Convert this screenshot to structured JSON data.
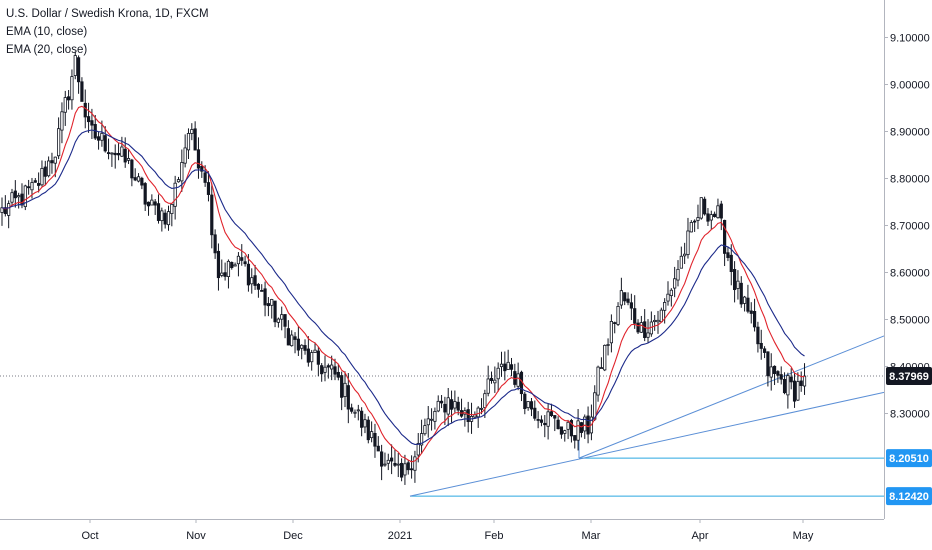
{
  "chart_data": {
    "type": "candlestick",
    "title": "U.S. Dollar / Swedish Krona, 1D, FXCM",
    "indicators": [
      {
        "name": "EMA (10, close)",
        "color": "#e0242c"
      },
      {
        "name": "EMA (20, close)",
        "color": "#1c2a8a"
      }
    ],
    "y_ticks": [
      "9.10000",
      "9.00000",
      "8.90000",
      "8.80000",
      "8.70000",
      "8.60000",
      "8.50000",
      "8.40000",
      "8.30000"
    ],
    "x_ticks": [
      "Oct",
      "Nov",
      "Dec",
      "2021",
      "Feb",
      "Mar",
      "Apr",
      "May"
    ],
    "ylim": [
      8.1,
      9.16
    ],
    "price_badges": [
      {
        "value": "8.37969",
        "color": "#131722"
      },
      {
        "value": "8.20510",
        "color": "#2196f3"
      },
      {
        "value": "8.12420",
        "color": "#2196f3"
      }
    ],
    "horizontal_levels": [
      8.2051,
      8.1242
    ],
    "current_price": 8.37969,
    "colors": {
      "up": "#ffffff",
      "down": "#131722",
      "trendline": "#5b8fd6",
      "level": "#2aa7e0"
    },
    "anchors": [
      [
        0,
        8.73
      ],
      [
        10,
        8.78
      ],
      [
        16,
        8.86
      ],
      [
        22,
        9.05
      ],
      [
        26,
        8.9
      ],
      [
        32,
        8.87
      ],
      [
        38,
        8.83
      ],
      [
        44,
        8.74
      ],
      [
        50,
        8.72
      ],
      [
        56,
        8.9
      ],
      [
        61,
        8.81
      ],
      [
        65,
        8.6
      ],
      [
        72,
        8.62
      ],
      [
        80,
        8.53
      ],
      [
        90,
        8.43
      ],
      [
        100,
        8.38
      ],
      [
        108,
        8.28
      ],
      [
        116,
        8.19
      ],
      [
        120,
        8.16
      ],
      [
        124,
        8.22
      ],
      [
        128,
        8.28
      ],
      [
        134,
        8.33
      ],
      [
        140,
        8.29
      ],
      [
        146,
        8.35
      ],
      [
        152,
        8.41
      ],
      [
        158,
        8.32
      ],
      [
        164,
        8.29
      ],
      [
        170,
        8.26
      ],
      [
        176,
        8.27
      ],
      [
        180,
        8.41
      ],
      [
        186,
        8.55
      ],
      [
        192,
        8.48
      ],
      [
        198,
        8.51
      ],
      [
        204,
        8.63
      ],
      [
        210,
        8.74
      ],
      [
        215,
        8.72
      ],
      [
        220,
        8.58
      ],
      [
        226,
        8.47
      ],
      [
        230,
        8.39
      ],
      [
        234,
        8.37
      ],
      [
        238,
        8.35
      ],
      [
        241,
        8.38
      ]
    ]
  }
}
